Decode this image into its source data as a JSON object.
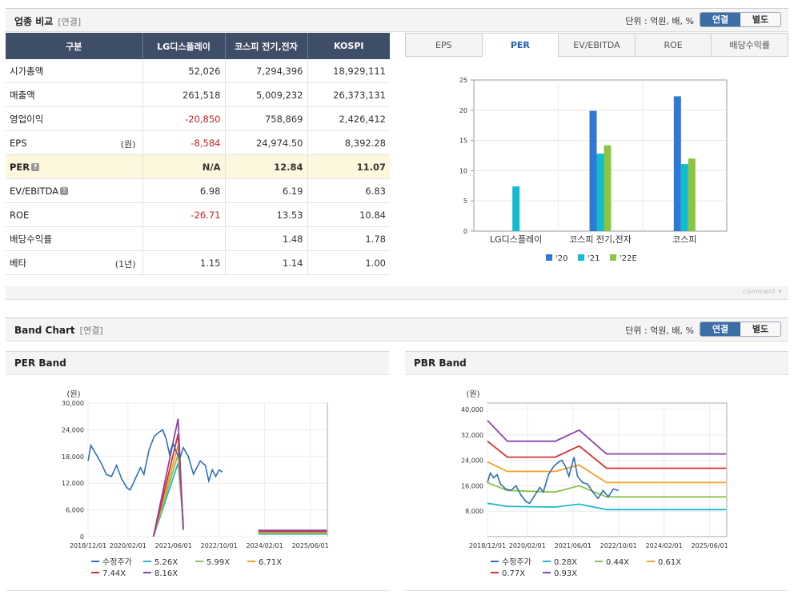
{
  "comparison": {
    "title": "업종 비교",
    "subtitle": "[연결]",
    "unit_text": "단위 : 억원, 배, %",
    "toggle_on": "연결",
    "toggle_off": "별도",
    "columns": [
      "구분",
      "LG디스플레이",
      "코스피 전기,전자",
      "KOSPI"
    ],
    "rows": [
      {
        "label": "시가총액",
        "note": "",
        "help": false,
        "values": [
          "52,026",
          "7,294,396",
          "18,929,111"
        ],
        "negative": [
          false,
          false,
          false
        ],
        "highlight": false
      },
      {
        "label": "매출액",
        "note": "",
        "help": false,
        "values": [
          "261,518",
          "5,009,232",
          "26,373,131"
        ],
        "negative": [
          false,
          false,
          false
        ],
        "highlight": false
      },
      {
        "label": "영업이익",
        "note": "",
        "help": false,
        "values": [
          "-20,850",
          "758,869",
          "2,426,412"
        ],
        "negative": [
          true,
          false,
          false
        ],
        "highlight": false
      },
      {
        "label": "EPS",
        "note": "(원)",
        "help": false,
        "values": [
          "-8,584",
          "24,974.50",
          "8,392.28"
        ],
        "negative": [
          true,
          false,
          false
        ],
        "highlight": false
      },
      {
        "label": "PER",
        "note": "",
        "help": true,
        "values": [
          "N/A",
          "12.84",
          "11.07"
        ],
        "negative": [
          false,
          false,
          false
        ],
        "highlight": true
      },
      {
        "label": "EV/EBITDA",
        "note": "",
        "help": true,
        "values": [
          "6.98",
          "6.19",
          "6.83"
        ],
        "negative": [
          false,
          false,
          false
        ],
        "highlight": false
      },
      {
        "label": "ROE",
        "note": "",
        "help": false,
        "values": [
          "-26.71",
          "13.53",
          "10.84"
        ],
        "negative": [
          true,
          false,
          false
        ],
        "highlight": false
      },
      {
        "label": "배당수익률",
        "note": "",
        "help": false,
        "values": [
          "",
          "1.48",
          "1.78"
        ],
        "negative": [
          false,
          false,
          false
        ],
        "highlight": false
      },
      {
        "label": "베타",
        "note": "(1년)",
        "help": false,
        "values": [
          "1.15",
          "1.14",
          "1.00"
        ],
        "negative": [
          false,
          false,
          false
        ],
        "highlight": false
      }
    ],
    "tabs": [
      "EPS",
      "PER",
      "EV/EBITDA",
      "ROE",
      "배당수익률"
    ],
    "active_tab": 1,
    "comment_label": "comment"
  },
  "band": {
    "title": "Band Chart",
    "subtitle": "[연결]",
    "unit_text": "단위 : 억원, 배, %",
    "toggle_on": "연결",
    "toggle_off": "별도",
    "per_title": "PER Band",
    "pbr_title": "PBR Band"
  },
  "chart_data": [
    {
      "type": "bar",
      "title": "PER",
      "categories": [
        "LG디스플레이",
        "코스피 전기,전자",
        "코스피"
      ],
      "series": [
        {
          "name": "'20",
          "color": "#2f78d8",
          "values": [
            null,
            19.9,
            22.3
          ]
        },
        {
          "name": "'21",
          "color": "#12bcd0",
          "values": [
            7.4,
            12.8,
            11.1
          ]
        },
        {
          "name": "'22E",
          "color": "#8cc540",
          "values": [
            null,
            14.2,
            12.0
          ]
        }
      ],
      "ylim": [
        0,
        25
      ],
      "yticks": [
        0,
        5,
        10,
        15,
        20,
        25
      ],
      "legend": "bottom"
    },
    {
      "type": "line",
      "title": "PER Band",
      "yunit": "(원)",
      "ylim": [
        0,
        30000
      ],
      "yticks": [
        "0",
        "6,000",
        "12,000",
        "18,000",
        "24,000",
        "30,000"
      ],
      "ytick_values": [
        0,
        6000,
        12000,
        18000,
        24000,
        30000
      ],
      "xlim": [
        2018.917,
        2025.917
      ],
      "xticks": [
        "2018/12/01",
        "2020/02/01",
        "2021/06/01",
        "2022/10/01",
        "2024/02/01",
        "2025/06/01"
      ],
      "xtick_values": [
        2018.917,
        2020.083,
        2021.417,
        2022.75,
        2024.083,
        2025.417
      ],
      "series": [
        {
          "name": "수정주가",
          "color": "#2f6fb8",
          "points": [
            [
              2018.92,
              17000
            ],
            [
              2019.0,
              20500
            ],
            [
              2019.15,
              18500
            ],
            [
              2019.3,
              16500
            ],
            [
              2019.45,
              14000
            ],
            [
              2019.6,
              13500
            ],
            [
              2019.75,
              16000
            ],
            [
              2019.9,
              13000
            ],
            [
              2020.05,
              11000
            ],
            [
              2020.15,
              10500
            ],
            [
              2020.3,
              13000
            ],
            [
              2020.45,
              15500
            ],
            [
              2020.55,
              14000
            ],
            [
              2020.7,
              19500
            ],
            [
              2020.85,
              22500
            ],
            [
              2021.0,
              23500
            ],
            [
              2021.1,
              24000
            ],
            [
              2021.2,
              22000
            ],
            [
              2021.3,
              18500
            ],
            [
              2021.4,
              21000
            ],
            [
              2021.5,
              19000
            ],
            [
              2021.6,
              17500
            ],
            [
              2021.7,
              20000
            ],
            [
              2021.85,
              18000
            ],
            [
              2022.0,
              14000
            ],
            [
              2022.2,
              17000
            ],
            [
              2022.35,
              16000
            ],
            [
              2022.45,
              12500
            ],
            [
              2022.55,
              15000
            ],
            [
              2022.65,
              13500
            ],
            [
              2022.75,
              15000
            ],
            [
              2022.85,
              14500
            ]
          ]
        },
        {
          "name": "5.26X",
          "color": "#22b7c9",
          "points": [
            [
              2020.83,
              0
            ],
            [
              2021.55,
              16500
            ],
            [
              2021.7,
              3500
            ]
          ]
        },
        {
          "name": "5.99X",
          "color": "#8bc34a",
          "points": [
            [
              2020.83,
              0
            ],
            [
              2021.55,
              18500
            ],
            [
              2021.7,
              3000
            ]
          ]
        },
        {
          "name": "6.71X",
          "color": "#f2a024",
          "points": [
            [
              2020.83,
              0
            ],
            [
              2021.55,
              20500
            ],
            [
              2021.7,
              2500
            ]
          ]
        },
        {
          "name": "7.44X",
          "color": "#d93030",
          "points": [
            [
              2020.83,
              0
            ],
            [
              2021.55,
              23000
            ],
            [
              2021.7,
              2000
            ]
          ]
        },
        {
          "name": "8.16X",
          "color": "#8e44ad",
          "points": [
            [
              2020.83,
              0
            ],
            [
              2021.55,
              26500
            ],
            [
              2021.7,
              1500
            ]
          ]
        }
      ],
      "tail_series": [
        {
          "name": "5.26X",
          "color": "#22b7c9",
          "points": [
            [
              2023.9,
              600
            ],
            [
              2025.9,
              600
            ]
          ]
        },
        {
          "name": "5.99X",
          "color": "#8bc34a",
          "points": [
            [
              2023.9,
              800
            ],
            [
              2025.9,
              800
            ]
          ]
        },
        {
          "name": "6.71X",
          "color": "#f2a024",
          "points": [
            [
              2023.9,
              1000
            ],
            [
              2025.9,
              1000
            ]
          ]
        },
        {
          "name": "7.44X",
          "color": "#d93030",
          "points": [
            [
              2023.9,
              1200
            ],
            [
              2025.9,
              1200
            ]
          ]
        },
        {
          "name": "8.16X",
          "color": "#8e44ad",
          "points": [
            [
              2023.9,
              1400
            ],
            [
              2025.9,
              1400
            ]
          ]
        }
      ],
      "legend": "bottom"
    },
    {
      "type": "line",
      "title": "PBR Band",
      "yunit": "(원)",
      "ylim": [
        0,
        42000
      ],
      "yticks": [
        "8,000",
        "16,000",
        "24,000",
        "32,000",
        "40,000"
      ],
      "ytick_values": [
        8000,
        16000,
        24000,
        32000,
        40000
      ],
      "xlim": [
        2018.917,
        2025.917
      ],
      "xticks": [
        "2018/12/01",
        "2020/02/01",
        "2021/06/01",
        "2022/10/01",
        "2024/02/01",
        "2025/06/01"
      ],
      "xtick_values": [
        2018.917,
        2020.083,
        2021.417,
        2022.75,
        2024.083,
        2025.417
      ],
      "series": [
        {
          "name": "수정주가",
          "color": "#2f6fb8",
          "points": [
            [
              2018.92,
              17000
            ],
            [
              2019.0,
              20000
            ],
            [
              2019.1,
              18500
            ],
            [
              2019.2,
              19500
            ],
            [
              2019.3,
              16500
            ],
            [
              2019.45,
              15000
            ],
            [
              2019.6,
              14500
            ],
            [
              2019.75,
              16000
            ],
            [
              2019.9,
              13000
            ],
            [
              2020.05,
              11000
            ],
            [
              2020.15,
              10500
            ],
            [
              2020.3,
              13000
            ],
            [
              2020.45,
              15500
            ],
            [
              2020.55,
              14000
            ],
            [
              2020.7,
              19500
            ],
            [
              2020.85,
              22000
            ],
            [
              2021.0,
              23500
            ],
            [
              2021.1,
              24000
            ],
            [
              2021.2,
              22000
            ],
            [
              2021.3,
              19000
            ],
            [
              2021.45,
              25000
            ],
            [
              2021.55,
              19000
            ],
            [
              2021.7,
              17000
            ],
            [
              2021.85,
              16500
            ],
            [
              2022.0,
              14000
            ],
            [
              2022.15,
              12000
            ],
            [
              2022.3,
              14500
            ],
            [
              2022.45,
              12500
            ],
            [
              2022.6,
              15000
            ],
            [
              2022.75,
              14500
            ]
          ]
        },
        {
          "name": "0.28X",
          "color": "#22b7c9",
          "points": [
            [
              2018.92,
              10500
            ],
            [
              2019.5,
              9500
            ],
            [
              2020.9,
              9300
            ],
            [
              2021.6,
              10200
            ],
            [
              2022.4,
              8500
            ],
            [
              2025.9,
              8500
            ]
          ]
        },
        {
          "name": "0.44X",
          "color": "#8bc34a",
          "points": [
            [
              2018.92,
              17000
            ],
            [
              2019.5,
              14500
            ],
            [
              2020.9,
              14000
            ],
            [
              2021.6,
              16000
            ],
            [
              2022.4,
              12500
            ],
            [
              2025.9,
              12500
            ]
          ]
        },
        {
          "name": "0.61X",
          "color": "#f2a024",
          "points": [
            [
              2018.92,
              23500
            ],
            [
              2019.5,
              20500
            ],
            [
              2020.9,
              20500
            ],
            [
              2021.6,
              22500
            ],
            [
              2022.4,
              17000
            ],
            [
              2025.9,
              17000
            ]
          ]
        },
        {
          "name": "0.77X",
          "color": "#d93030",
          "points": [
            [
              2018.92,
              30000
            ],
            [
              2019.5,
              25000
            ],
            [
              2020.9,
              25000
            ],
            [
              2021.6,
              28500
            ],
            [
              2022.4,
              21500
            ],
            [
              2025.9,
              21500
            ]
          ]
        },
        {
          "name": "0.93X",
          "color": "#8e44ad",
          "points": [
            [
              2018.92,
              36500
            ],
            [
              2019.5,
              30000
            ],
            [
              2020.9,
              30000
            ],
            [
              2021.6,
              33500
            ],
            [
              2022.4,
              26000
            ],
            [
              2025.9,
              26000
            ]
          ]
        }
      ],
      "legend": "bottom"
    }
  ]
}
